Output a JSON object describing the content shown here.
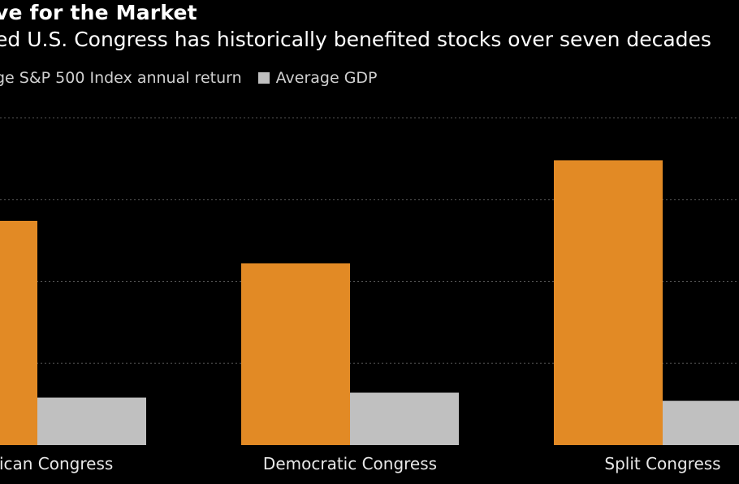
{
  "title": "ve for the Market",
  "subtitle": "ed U.S. Congress has historically benefited stocks over seven decades",
  "chart_data": {
    "type": "bar",
    "categories": [
      "blican Congress",
      "Democratic Congress",
      "Split Congress"
    ],
    "series": [
      {
        "name": "ge S&P 500 Index annual return",
        "color": "#e28a25",
        "values": [
          13.7,
          11.1,
          17.4
        ]
      },
      {
        "name": "Average GDP",
        "color": "#c0c0c0",
        "values": [
          2.9,
          3.2,
          2.7
        ]
      }
    ],
    "ylim": [
      0,
      20
    ],
    "grid": true,
    "gridline_values": [
      5,
      10,
      15,
      20
    ],
    "legend_position": "top-left"
  },
  "colors": {
    "background": "#000000",
    "gridline": "#555555",
    "text": "#ffffff"
  }
}
